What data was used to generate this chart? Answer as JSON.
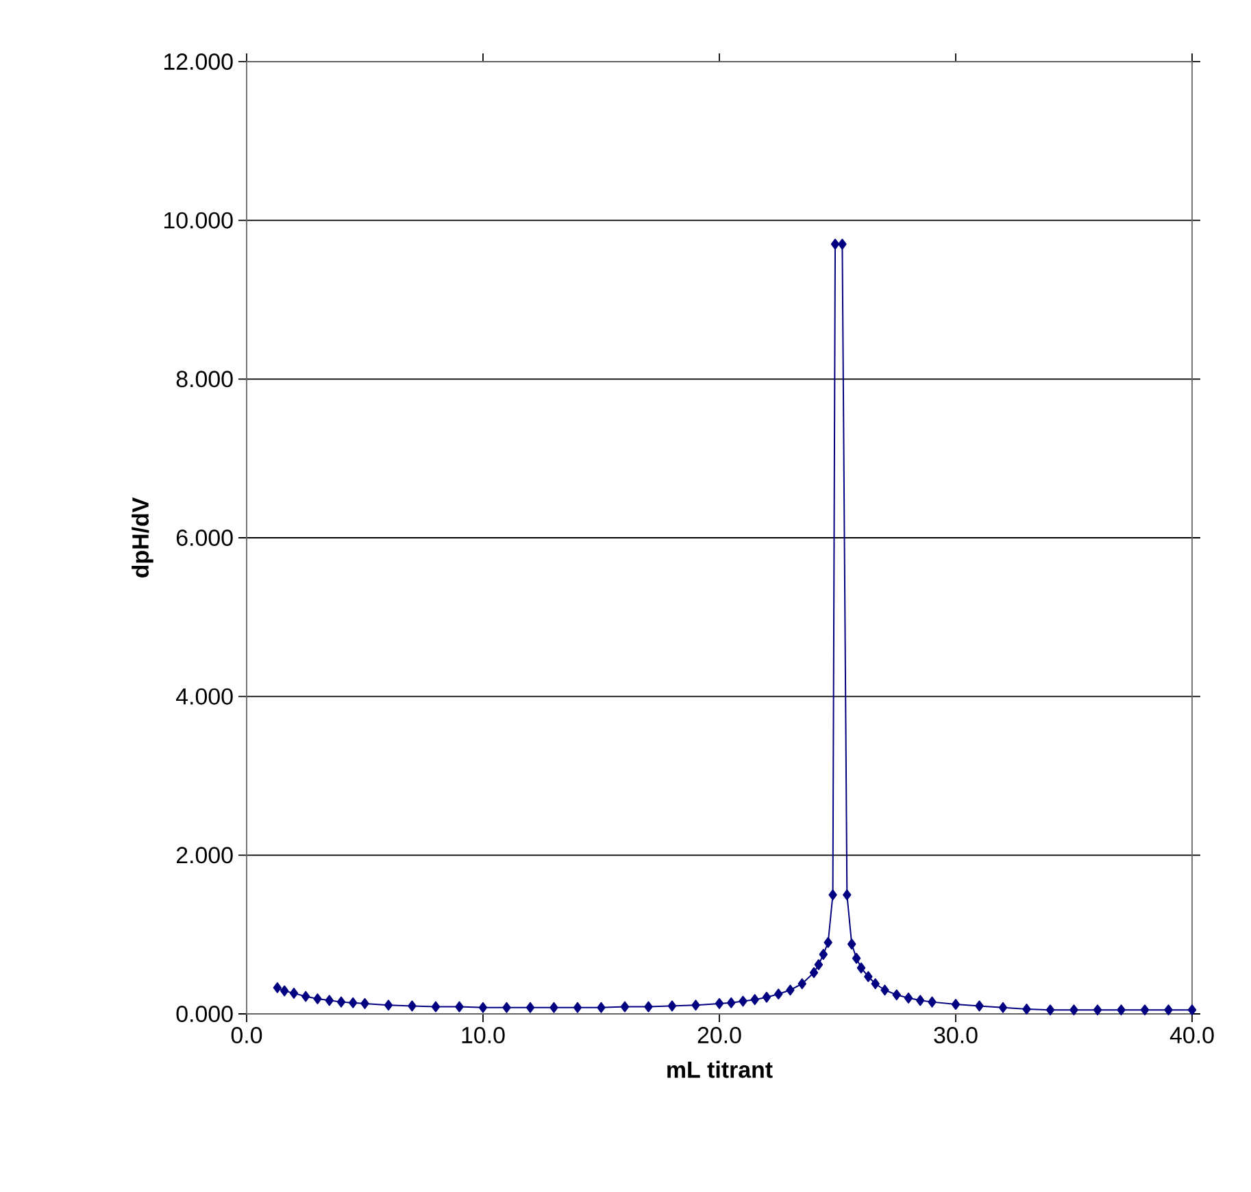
{
  "chart_data": {
    "type": "line",
    "xlabel": "mL titrant",
    "ylabel": "dpH/dV",
    "series": [
      {
        "color": "#000080",
        "x": [
          1.3,
          1.6,
          2,
          2.5,
          3,
          3.5,
          4,
          4.5,
          5,
          6,
          7,
          8,
          9,
          10,
          11,
          12,
          13,
          14,
          15,
          16,
          17,
          18,
          19,
          20,
          20.5,
          21,
          21.5,
          22,
          22.5,
          23,
          23.5,
          24,
          24.2,
          24.4,
          24.6,
          24.8,
          24.9,
          25.2,
          25.4,
          25.6,
          25.8,
          26,
          26.3,
          26.6,
          27,
          27.5,
          28,
          28.5,
          29,
          30,
          31,
          32,
          33,
          34,
          35,
          36,
          37,
          38,
          39,
          40
        ],
        "values": [
          0.33,
          0.29,
          0.26,
          0.22,
          0.19,
          0.17,
          0.15,
          0.14,
          0.13,
          0.11,
          0.1,
          0.09,
          0.09,
          0.08,
          0.08,
          0.08,
          0.08,
          0.08,
          0.08,
          0.09,
          0.09,
          0.1,
          0.11,
          0.13,
          0.14,
          0.16,
          0.18,
          0.21,
          0.25,
          0.3,
          0.38,
          0.52,
          0.62,
          0.75,
          0.9,
          1.5,
          9.7,
          9.7,
          1.5,
          0.88,
          0.7,
          0.58,
          0.47,
          0.38,
          0.3,
          0.24,
          0.2,
          0.17,
          0.15,
          0.12,
          0.1,
          0.08,
          0.06,
          0.05,
          0.05,
          0.05,
          0.05,
          0.05,
          0.05,
          0.05
        ]
      }
    ],
    "xlim": [
      0,
      40
    ],
    "ylim": [
      0,
      12
    ],
    "xticks": [
      {
        "value": 0,
        "label": "0.0"
      },
      {
        "value": 10,
        "label": "10.0"
      },
      {
        "value": 20,
        "label": "20.0"
      },
      {
        "value": 30,
        "label": "30.0"
      },
      {
        "value": 40,
        "label": "40.0"
      }
    ],
    "yticks": [
      {
        "value": 0,
        "label": "0.000"
      },
      {
        "value": 2,
        "label": "2.000"
      },
      {
        "value": 4,
        "label": "4.000"
      },
      {
        "value": 6,
        "label": "6.000"
      },
      {
        "value": 8,
        "label": "8.000"
      },
      {
        "value": 10,
        "label": "10.000"
      },
      {
        "value": 12,
        "label": "12.000"
      }
    ],
    "grid": "y",
    "marker": "diamond",
    "line_style": "solid"
  }
}
